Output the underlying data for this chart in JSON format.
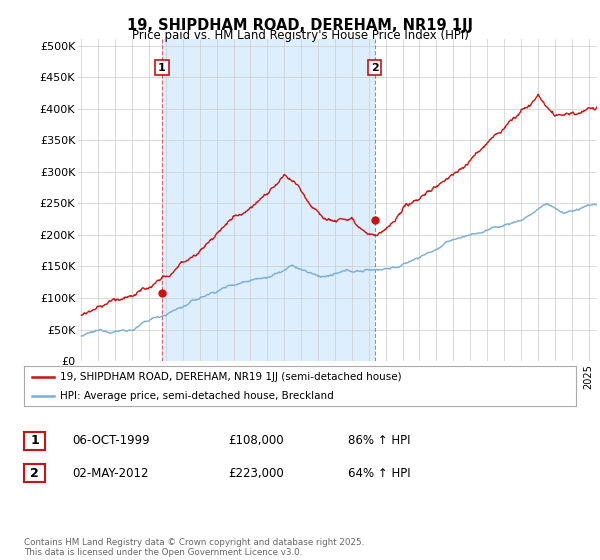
{
  "title": "19, SHIPDHAM ROAD, DEREHAM, NR19 1JJ",
  "subtitle": "Price paid vs. HM Land Registry's House Price Index (HPI)",
  "ylabel_ticks": [
    "£0",
    "£50K",
    "£100K",
    "£150K",
    "£200K",
    "£250K",
    "£300K",
    "£350K",
    "£400K",
    "£450K",
    "£500K"
  ],
  "ytick_values": [
    0,
    50000,
    100000,
    150000,
    200000,
    250000,
    300000,
    350000,
    400000,
    450000,
    500000
  ],
  "ylim": [
    0,
    510000
  ],
  "xlim_start": 1994.8,
  "xlim_end": 2025.5,
  "hpi_color": "#7aaed6",
  "price_color": "#cc1111",
  "sale1_date": 1999.77,
  "sale1_price": 108000,
  "sale1_label": "1",
  "sale2_date": 2012.35,
  "sale2_price": 223000,
  "sale2_label": "2",
  "shade_color": "#ddeeff",
  "legend_line1": "19, SHIPDHAM ROAD, DEREHAM, NR19 1JJ (semi-detached house)",
  "legend_line2": "HPI: Average price, semi-detached house, Breckland",
  "table_row1": [
    "1",
    "06-OCT-1999",
    "£108,000",
    "86% ↑ HPI"
  ],
  "table_row2": [
    "2",
    "02-MAY-2012",
    "£223,000",
    "64% ↑ HPI"
  ],
  "footnote": "Contains HM Land Registry data © Crown copyright and database right 2025.\nThis data is licensed under the Open Government Licence v3.0.",
  "vline_color": "#cc1111",
  "background_color": "#ffffff",
  "grid_color": "#cccccc"
}
